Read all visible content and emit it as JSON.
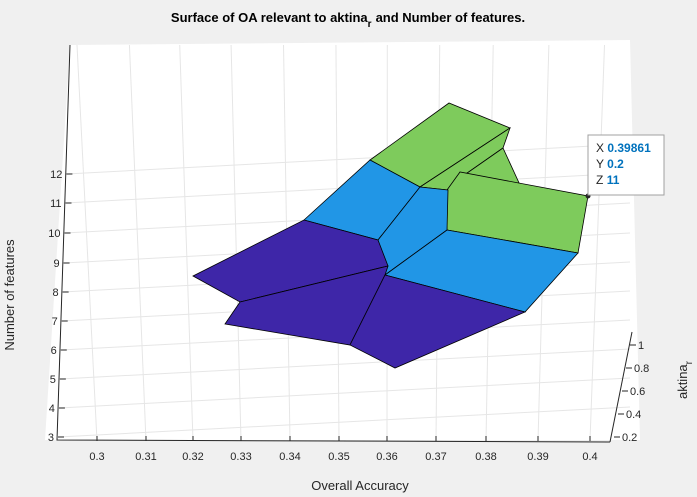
{
  "chart_data": {
    "type": "surface",
    "title": "Surface of OA relevant to aktina",
    "title_subscript": "r",
    "title_suffix": "and Number of features.",
    "xlabel": "Overall Accuracy",
    "ylabel": "aktina",
    "ylabel_subscript": "r",
    "zlabel": "Number of features",
    "xlim": [
      0.295,
      0.405
    ],
    "ylim": [
      0.1,
      1.05
    ],
    "zlim": [
      3,
      12.5
    ],
    "xticks": [
      "0.3",
      "0.31",
      "0.32",
      "0.33",
      "0.34",
      "0.35",
      "0.36",
      "0.37",
      "0.38",
      "0.39",
      "0.4"
    ],
    "yticks": [
      "0.2",
      "0.4",
      "0.6",
      "0.8",
      "1"
    ],
    "zticks": [
      "3",
      "4",
      "5",
      "6",
      "7",
      "8",
      "9",
      "10",
      "11",
      "12"
    ],
    "grid": true,
    "colormap": [
      "#3e26a8",
      "#2196e6",
      "#7ecb5c"
    ],
    "color_levels": [
      7,
      9,
      11
    ],
    "datatip": {
      "x_label": "X",
      "x_value": "0.39861",
      "y_label": "Y",
      "y_value": "0.2",
      "z_label": "Z",
      "z_value": "11"
    }
  }
}
